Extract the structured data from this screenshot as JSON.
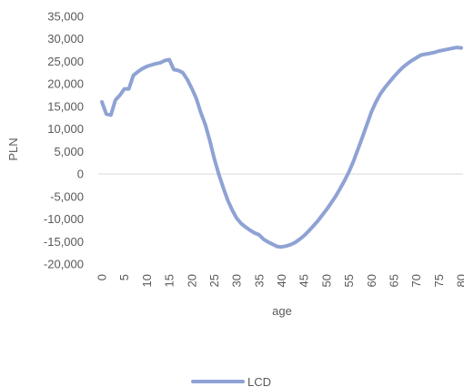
{
  "chart_data": {
    "type": "line",
    "title": "",
    "xlabel": "age",
    "ylabel": "PLN",
    "xlim": [
      0,
      80
    ],
    "ylim": [
      -20000,
      35000
    ],
    "grid": false,
    "legend_position": "bottom",
    "x_ticks": [
      "0",
      "5",
      "10",
      "15",
      "20",
      "25",
      "30",
      "35",
      "40",
      "45",
      "50",
      "55",
      "60",
      "65",
      "70",
      "75",
      "80"
    ],
    "y_ticks": [
      "35,000",
      "30,000",
      "25,000",
      "20,000",
      "15,000",
      "10,000",
      "5,000",
      "0",
      "-5,000",
      "-10,000",
      "-15,000",
      "-20,000"
    ],
    "series": [
      {
        "name": "LCD",
        "color": "#8FA2D4",
        "x": [
          0,
          1,
          2,
          3,
          4,
          5,
          6,
          7,
          8,
          9,
          10,
          11,
          12,
          13,
          14,
          15,
          16,
          17,
          18,
          19,
          20,
          21,
          22,
          23,
          24,
          25,
          26,
          27,
          28,
          29,
          30,
          31,
          32,
          33,
          34,
          35,
          36,
          37,
          38,
          39,
          40,
          41,
          42,
          43,
          44,
          45,
          46,
          47,
          48,
          49,
          50,
          51,
          52,
          53,
          54,
          55,
          56,
          57,
          58,
          59,
          60,
          61,
          62,
          63,
          64,
          65,
          66,
          67,
          68,
          69,
          70,
          71,
          72,
          73,
          74,
          75,
          76,
          77,
          78,
          79,
          80
        ],
        "values": [
          16000,
          13300,
          13100,
          16400,
          17500,
          18900,
          18900,
          21900,
          22700,
          23400,
          23900,
          24200,
          24500,
          24700,
          25200,
          25400,
          23200,
          23000,
          22500,
          21000,
          19000,
          16800,
          13700,
          11000,
          7500,
          3500,
          0,
          -3000,
          -5800,
          -8000,
          -9800,
          -11000,
          -11800,
          -12500,
          -13100,
          -13500,
          -14500,
          -15100,
          -15600,
          -16100,
          -16200,
          -16000,
          -15700,
          -15200,
          -14500,
          -13700,
          -12700,
          -11600,
          -10500,
          -9200,
          -7900,
          -6500,
          -5000,
          -3300,
          -1500,
          500,
          2800,
          5500,
          8200,
          11000,
          13800,
          16000,
          17800,
          19200,
          20400,
          21600,
          22700,
          23700,
          24500,
          25200,
          25800,
          26400,
          26600,
          26800,
          27000,
          27300,
          27500,
          27700,
          27900,
          28100,
          28000
        ]
      }
    ]
  }
}
